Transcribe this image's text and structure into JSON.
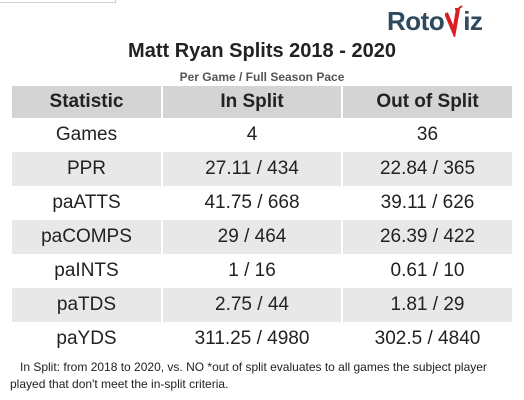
{
  "logo": {
    "text_left": "Roto",
    "text_right": "iz",
    "colors": {
      "text": "#2f4a5e",
      "accent": "#d81f26"
    }
  },
  "title": "Matt Ryan Splits 2018 - 2020",
  "subtitle": "Per Game / Full Season Pace",
  "table": {
    "headers": [
      "Statistic",
      "In Split",
      "Out of Split"
    ],
    "rows": [
      [
        "Games",
        "4",
        "36"
      ],
      [
        "PPR",
        "27.11 / 434",
        "22.84 / 365"
      ],
      [
        "paATTS",
        "41.75 / 668",
        "39.11 / 626"
      ],
      [
        "paCOMPS",
        "29 / 464",
        "26.39 / 422"
      ],
      [
        "paINTS",
        "1 / 16",
        "0.61 / 10"
      ],
      [
        "paTDS",
        "2.75 / 44",
        "1.81 / 29"
      ],
      [
        "paYDS",
        "311.25 / 4980",
        "302.5 / 4840"
      ]
    ]
  },
  "footnote": "In Split: from 2018 to 2020, vs. NO *out of split evaluates to all games the subject player played that don't meet the in-split criteria."
}
